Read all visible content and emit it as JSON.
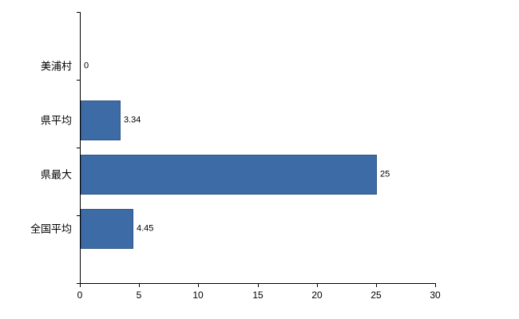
{
  "chart_data": {
    "type": "bar",
    "orientation": "horizontal",
    "title": "",
    "categories": [
      "美浦村",
      "県平均",
      "県最大",
      "全国平均"
    ],
    "values": [
      0,
      3.34,
      25,
      4.45
    ],
    "value_labels": [
      "0",
      "3.34",
      "25",
      "4.45"
    ],
    "xlim": [
      0,
      30
    ],
    "x_ticks": [
      0,
      5,
      10,
      15,
      20,
      25,
      30
    ],
    "grid": false,
    "legend": false,
    "colors": {
      "bar_fill": "#3d6ba5",
      "bar_border": "#2f5584",
      "axis": "#000000",
      "label_text": "#000000",
      "background": "#ffffff"
    }
  }
}
